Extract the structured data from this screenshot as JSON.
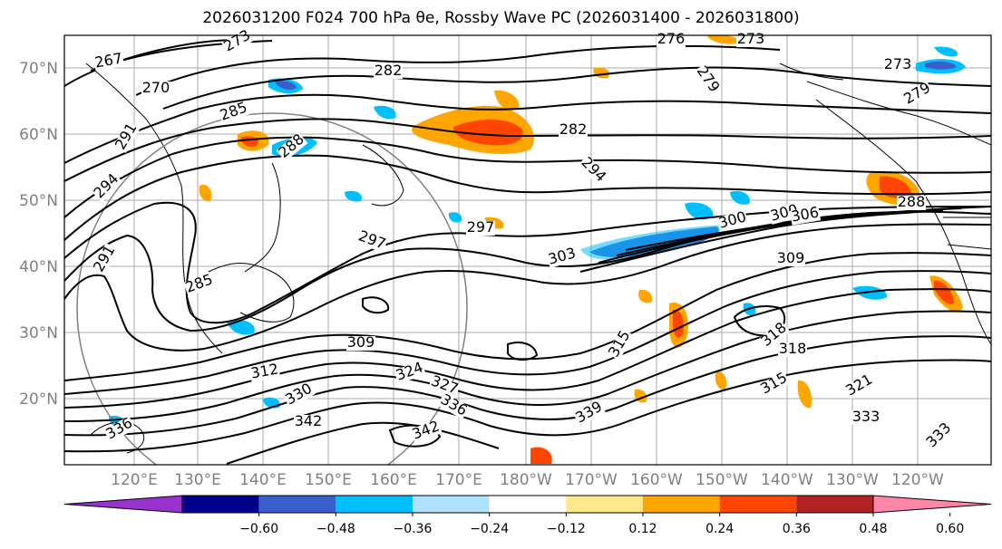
{
  "title": "2026031200 F024 700 hPa θe, Rossby Wave PC (2026031400 - 2026031800)",
  "latitude_labels": [
    "70°N",
    "60°N",
    "50°N",
    "40°N",
    "30°N",
    "20°N"
  ],
  "longitude_labels": [
    "120°E",
    "130°E",
    "140°E",
    "150°E",
    "160°E",
    "170°E",
    "180°W",
    "170°W",
    "160°W",
    "150°W",
    "140°W",
    "130°W",
    "120°W"
  ],
  "contour_labels": [
    "267",
    "270",
    "273",
    "276",
    "273",
    "273",
    "279",
    "279",
    "282",
    "282",
    "285",
    "285",
    "288",
    "288",
    "291",
    "291",
    "294",
    "294",
    "297",
    "297",
    "300",
    "300",
    "303",
    "306",
    "309",
    "309",
    "312",
    "315",
    "315",
    "318",
    "318",
    "321",
    "324",
    "327",
    "330",
    "333",
    "336",
    "339",
    "342",
    "342",
    "336",
    "333"
  ],
  "colorbar": {
    "tick_labels": [
      "−0.60",
      "−0.48",
      "−0.36",
      "−0.24",
      "−0.12",
      "0.12",
      "0.24",
      "0.36",
      "0.48",
      "0.60"
    ],
    "bins": [
      {
        "color": "#9a32cd"
      },
      {
        "color": "#00008b"
      },
      {
        "color": "#3a5fcd"
      },
      {
        "color": "#00bfff"
      },
      {
        "color": "#b0e2ff"
      },
      {
        "color": "#ffffff"
      },
      {
        "color": "#ffe88a"
      },
      {
        "color": "#ffa500"
      },
      {
        "color": "#ff4500"
      },
      {
        "color": "#b22222"
      },
      {
        "color": "#ff86a8"
      }
    ]
  },
  "colors": {
    "contour": "#000000",
    "grid": "#a0a0a0",
    "coast": "#000000",
    "axis_label": "#808080"
  }
}
